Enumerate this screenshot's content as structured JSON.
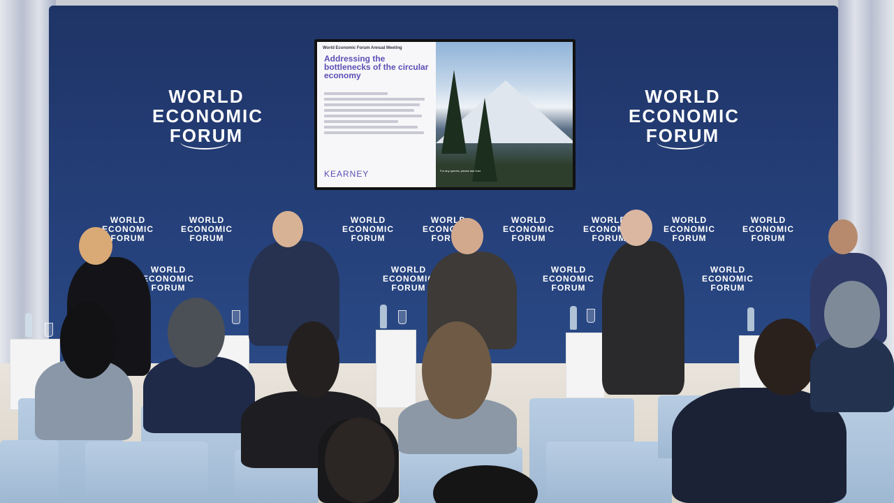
{
  "backdrop": {
    "big_logo_left": [
      "WORLD",
      "ECONOMIC",
      "FORUM"
    ],
    "big_logo_right": [
      "WORLD",
      "ECONOMIC",
      "FORUM"
    ],
    "small_logo": [
      "WORLD",
      "ECONOMIC",
      "FORUM"
    ]
  },
  "screen": {
    "kicker": "World Economic Forum Annual Meeting",
    "title": "Addressing the bottlenecks of the circular economy",
    "brand": "KEARNEY",
    "note": "For any queries, please ask host"
  },
  "colors": {
    "backdrop": "#25407a",
    "slide_accent": "#5b4fb5",
    "chairs": "#a9c0d8"
  }
}
